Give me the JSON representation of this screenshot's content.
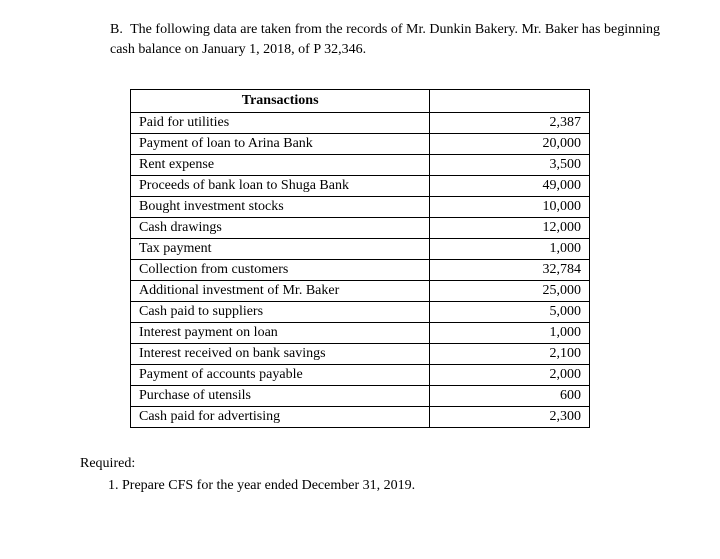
{
  "intro": {
    "label": "B.",
    "text": "The following data are taken from the records of Mr. Dunkin Bakery. Mr. Baker has beginning cash balance on January 1, 2018, of P 32,346."
  },
  "table": {
    "header": "Transactions",
    "rows": [
      {
        "label": "Paid for utilities",
        "value": "2,387"
      },
      {
        "label": "Payment of loan to Arina Bank",
        "value": "20,000"
      },
      {
        "label": "Rent expense",
        "value": "3,500"
      },
      {
        "label": "Proceeds of bank loan to Shuga Bank",
        "value": "49,000"
      },
      {
        "label": "Bought investment stocks",
        "value": "10,000"
      },
      {
        "label": "Cash drawings",
        "value": "12,000"
      },
      {
        "label": "Tax payment",
        "value": "1,000"
      },
      {
        "label": "Collection from customers",
        "value": "32,784"
      },
      {
        "label": "Additional investment of Mr. Baker",
        "value": "25,000"
      },
      {
        "label": "Cash paid to suppliers",
        "value": "5,000"
      },
      {
        "label": "Interest payment on loan",
        "value": "1,000"
      },
      {
        "label": "Interest received on bank savings",
        "value": "2,100"
      },
      {
        "label": "Payment of accounts payable",
        "value": "2,000"
      },
      {
        "label": "Purchase of utensils",
        "value": "600"
      },
      {
        "label": "Cash paid for advertising",
        "value": "2,300"
      }
    ]
  },
  "required": {
    "label": "Required:",
    "item": "1.  Prepare CFS for the year ended December 31, 2019."
  }
}
